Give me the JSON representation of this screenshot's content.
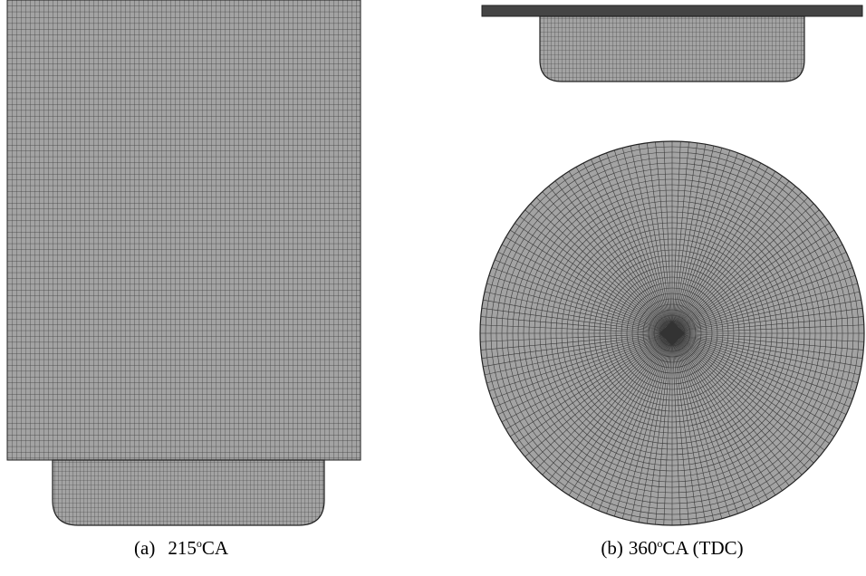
{
  "captions": [
    {
      "label": "(a)",
      "number": "215",
      "degree": "o",
      "unit": "CA"
    },
    {
      "label": "(b)",
      "number": "360",
      "degree": "o",
      "unit": "CA (TDC)"
    }
  ]
}
